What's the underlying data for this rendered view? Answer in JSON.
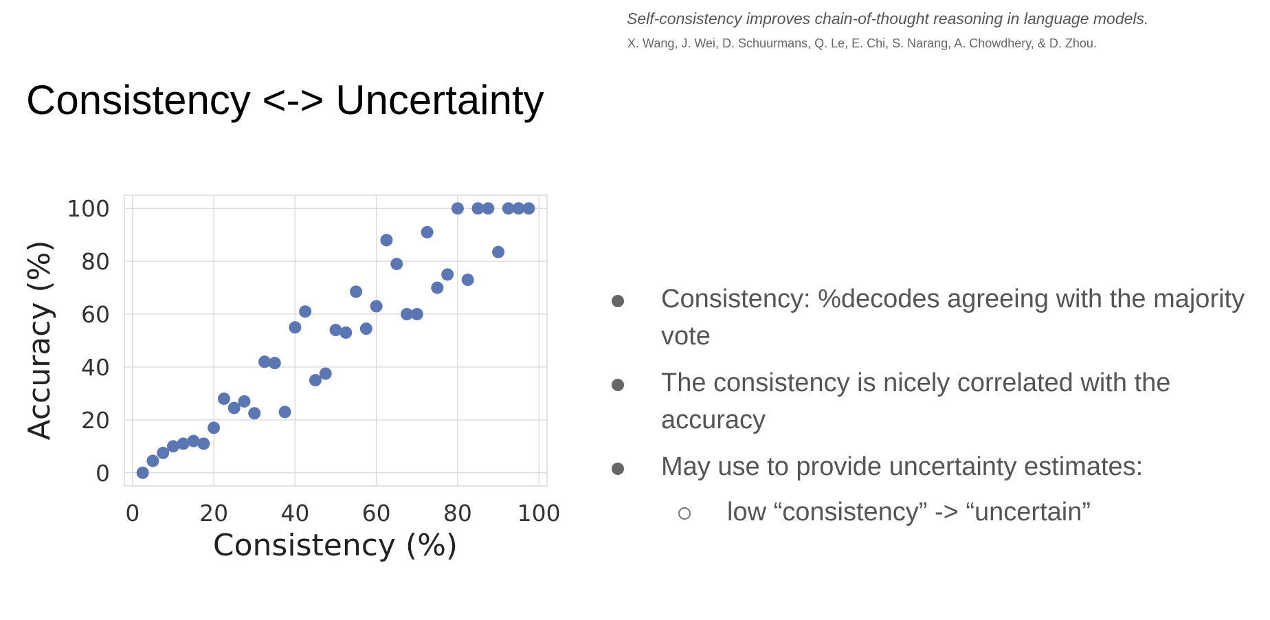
{
  "citation": {
    "title": "Self-consistency improves chain-of-thought reasoning in language models.",
    "authors": "X. Wang, J. Wei, D. Schuurmans, Q. Le, E. Chi, S. Narang, A. Chowdhery, & D. Zhou."
  },
  "slide": {
    "title": "Consistency <-> Uncertainty"
  },
  "bullets": [
    "Consistency: %decodes agreeing with the majority vote",
    "The consistency is nicely correlated with the accuracy",
    "May use to provide uncertainty estimates:"
  ],
  "sub_bullets": [
    "low “consistency” -> “uncertain”"
  ],
  "chart_data": {
    "type": "scatter",
    "title": "",
    "xlabel": "Consistency (%)",
    "ylabel": "Accuracy (%)",
    "xlim": [
      -2,
      102
    ],
    "ylim": [
      -5,
      105
    ],
    "xticks": [
      "0",
      "20",
      "40",
      "60",
      "80",
      "100"
    ],
    "yticks": [
      "0",
      "20",
      "40",
      "60",
      "80",
      "100"
    ],
    "grid": true,
    "marker_color": "#5B77B3",
    "points": [
      [
        2.5,
        0
      ],
      [
        5,
        4.5
      ],
      [
        7.5,
        7.5
      ],
      [
        10,
        10
      ],
      [
        12.5,
        11
      ],
      [
        15,
        12
      ],
      [
        17.5,
        11
      ],
      [
        20,
        17
      ],
      [
        22.5,
        28
      ],
      [
        25,
        24.5
      ],
      [
        27.5,
        27
      ],
      [
        30,
        22.5
      ],
      [
        32.5,
        42
      ],
      [
        35,
        41.5
      ],
      [
        37.5,
        23
      ],
      [
        40,
        55
      ],
      [
        42.5,
        61
      ],
      [
        45,
        35
      ],
      [
        47.5,
        37.5
      ],
      [
        50,
        54
      ],
      [
        52.5,
        53
      ],
      [
        55,
        68.5
      ],
      [
        57.5,
        54.5
      ],
      [
        60,
        63
      ],
      [
        62.5,
        88
      ],
      [
        65,
        79
      ],
      [
        67.5,
        60
      ],
      [
        70,
        60
      ],
      [
        72.5,
        91
      ],
      [
        75,
        70
      ],
      [
        77.5,
        75
      ],
      [
        80,
        100
      ],
      [
        82.5,
        73
      ],
      [
        85,
        100
      ],
      [
        87.5,
        100
      ],
      [
        90,
        83.5
      ],
      [
        92.5,
        100
      ],
      [
        95,
        100
      ],
      [
        97.5,
        100
      ]
    ]
  }
}
